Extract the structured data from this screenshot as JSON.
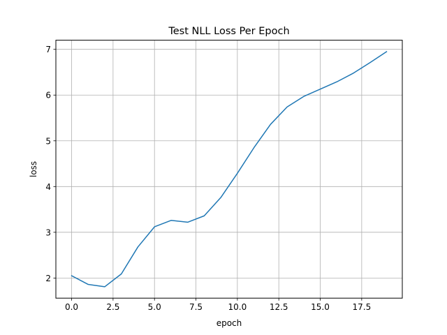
{
  "chart_data": {
    "type": "line",
    "title": "Test NLL Loss Per Epoch",
    "xlabel": "epoch",
    "ylabel": "loss",
    "xlim": [
      -0.95,
      19.95
    ],
    "ylim": [
      1.56,
      7.2
    ],
    "xticks": [
      0.0,
      2.5,
      5.0,
      7.5,
      10.0,
      12.5,
      15.0,
      17.5
    ],
    "xtick_labels": [
      "0.0",
      "2.5",
      "5.0",
      "7.5",
      "10.0",
      "12.5",
      "15.0",
      "17.5"
    ],
    "yticks": [
      2,
      3,
      4,
      5,
      6,
      7
    ],
    "ytick_labels": [
      "2",
      "3",
      "4",
      "5",
      "6",
      "7"
    ],
    "grid": true,
    "legend": false,
    "series": [
      {
        "color": "#1f77b4",
        "x": [
          0,
          1,
          2,
          3,
          4,
          5,
          6,
          7,
          8,
          9,
          10,
          11,
          12,
          13,
          14,
          15,
          16,
          17,
          18,
          19
        ],
        "y": [
          2.05,
          1.86,
          1.81,
          2.09,
          2.68,
          3.12,
          3.26,
          3.22,
          3.36,
          3.76,
          4.29,
          4.85,
          5.36,
          5.74,
          5.97,
          6.13,
          6.29,
          6.48,
          6.71,
          6.95
        ]
      }
    ]
  }
}
